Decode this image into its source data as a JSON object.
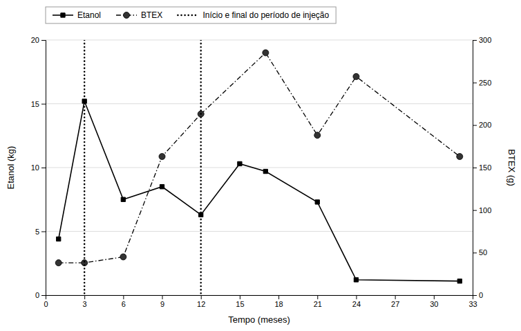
{
  "chart_data": {
    "type": "line",
    "xlabel": "Tempo (meses)",
    "ylabel": "Etanol (kg)",
    "y2label": "BTEX (g)",
    "xlim": [
      0,
      33
    ],
    "xticks": [
      0,
      3,
      6,
      9,
      12,
      15,
      18,
      21,
      24,
      27,
      30,
      33
    ],
    "ylim": [
      0,
      20
    ],
    "yticks": [
      0,
      5,
      10,
      15,
      20
    ],
    "y2lim": [
      0,
      300
    ],
    "y2ticks": [
      0,
      50,
      100,
      150,
      200,
      250,
      300
    ],
    "grid": true,
    "legend": "top",
    "series": [
      {
        "name": "Etanol",
        "color": "#000000",
        "marker": "square",
        "line_style": "solid",
        "x": [
          1,
          3,
          6,
          9,
          12,
          15,
          17,
          21,
          24,
          32
        ],
        "values": [
          4.4,
          15.2,
          7.5,
          8.5,
          6.3,
          10.3,
          9.7,
          7.3,
          1.2,
          1.1
        ]
      },
      {
        "name": "BTEX",
        "color": "#000000",
        "marker": "circle",
        "line_style": "dashdot",
        "axis": "y2",
        "x": [
          1,
          3,
          6,
          9,
          12,
          17,
          21,
          24,
          32
        ],
        "values": [
          38,
          38,
          45,
          163,
          213,
          285,
          188,
          257,
          163
        ]
      },
      {
        "name": "Início e final do período de injeção",
        "type": "vline",
        "color": "#000000",
        "line_style": "dotted",
        "x": [
          3,
          12
        ]
      }
    ]
  }
}
